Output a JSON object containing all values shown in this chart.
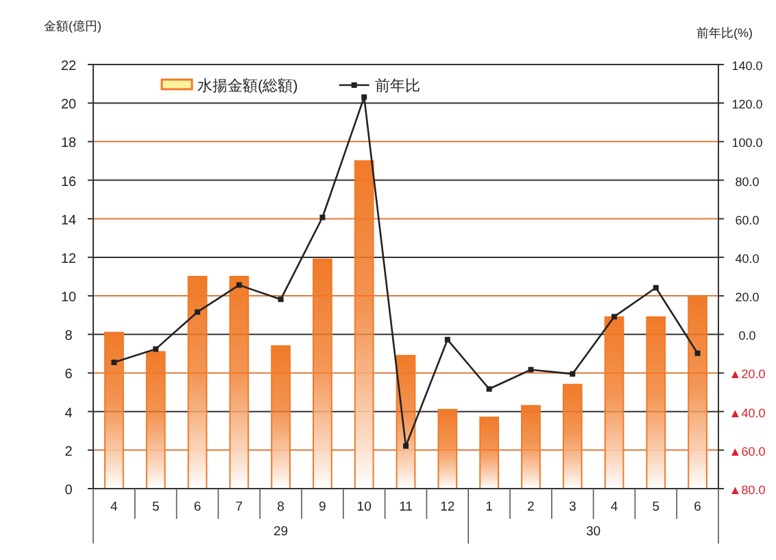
{
  "chart_data": {
    "type": "bar",
    "ylabel": "金額(億円)",
    "y2label": "前年比(%)",
    "categories": [
      "4",
      "5",
      "6",
      "7",
      "8",
      "9",
      "10",
      "11",
      "12",
      "1",
      "2",
      "3",
      "4",
      "5",
      "6"
    ],
    "series": [
      {
        "name": "水揚金額(総額)",
        "color": "#f07a28",
        "values": [
          8.1,
          7.1,
          11.0,
          11.0,
          7.4,
          11.9,
          17.0,
          6.9,
          4.1,
          3.7,
          4.3,
          5.4,
          8.9,
          8.9,
          10.0
        ]
      },
      {
        "name": "前年比",
        "type": "line",
        "axis": "y2",
        "color": "#222222",
        "values": [
          -14.5,
          -7.6,
          11.6,
          25.6,
          18.2,
          60.7,
          123.1,
          -57.9,
          -2.7,
          -28.3,
          -18.3,
          -20.5,
          9.2,
          24.2,
          -9.8
        ]
      }
    ],
    "ylim": [
      0,
      22
    ],
    "yticks": [
      0,
      2,
      4,
      6,
      8,
      10,
      12,
      14,
      16,
      18,
      20,
      22
    ],
    "y2lim": [
      -80,
      140
    ],
    "y2ticks": [
      {
        "value": -80,
        "label": "▲80.0"
      },
      {
        "value": -60,
        "label": "▲60.0"
      },
      {
        "value": -40,
        "label": "▲40.0"
      },
      {
        "value": -20,
        "label": "▲20.0"
      },
      {
        "value": 0,
        "label": "0.0"
      },
      {
        "value": 20,
        "label": "20.0"
      },
      {
        "value": 40,
        "label": "40.0"
      },
      {
        "value": 60,
        "label": "60.0"
      },
      {
        "value": 80,
        "label": "80.0"
      },
      {
        "value": 100,
        "label": "100.0"
      },
      {
        "value": 120,
        "label": "120.0"
      },
      {
        "value": 140,
        "label": "140.0"
      }
    ],
    "annotations": [
      "29",
      "30"
    ],
    "grid": "y",
    "legend": "top",
    "marker": "square",
    "line_style": "solid"
  }
}
